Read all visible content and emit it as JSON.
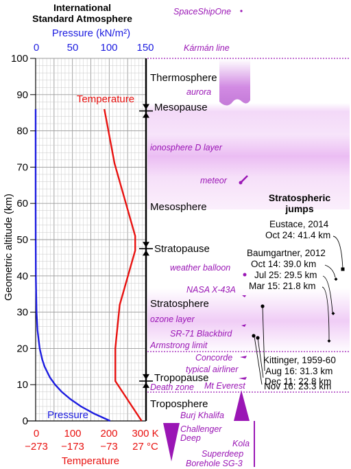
{
  "title_lines": [
    "International",
    "Standard Atmosphere"
  ],
  "pressure_axis": {
    "label": "Pressure (kN/m²)",
    "ticks": [
      "0",
      "50",
      "100",
      "150"
    ],
    "color": "#1c1ce0"
  },
  "altitude_axis": {
    "label": "Geometric altitude (km)",
    "ticks": [
      "0",
      "10",
      "20",
      "30",
      "40",
      "50",
      "60",
      "70",
      "80",
      "90",
      "100"
    ]
  },
  "temperature_axis": {
    "label": "Temperature",
    "kelvin_ticks": [
      "0",
      "100",
      "200",
      "300 K"
    ],
    "celsius_ticks": [
      "−273",
      "−173",
      "−73",
      "27 °C"
    ],
    "color": "#e8110f"
  },
  "curve_labels": {
    "temperature": "Temperature",
    "pressure": "Pressure"
  },
  "chart_data": {
    "type": "line",
    "series": [
      {
        "name": "Temperature",
        "x_unit": "K",
        "x": [
          288,
          216.5,
          216.5,
          228.5,
          270.5,
          270.5,
          214.5,
          186.8
        ],
        "y": [
          0,
          11,
          20,
          32,
          47,
          51,
          71,
          86
        ]
      },
      {
        "name": "Pressure",
        "x_unit": "kN/m²",
        "x": [
          101.3,
          79.5,
          61.6,
          47.2,
          35.6,
          26.5,
          19.4,
          12.1,
          8.85,
          5.53,
          2.55,
          1.2,
          0.29,
          0.08,
          0.02,
          0
        ],
        "y": [
          0,
          2,
          4,
          6,
          8,
          10,
          12,
          15,
          17,
          20,
          25,
          30,
          40,
          50,
          60,
          86
        ]
      }
    ],
    "xlim_pressure": [
      0,
      150
    ],
    "xlim_temperature": [
      0,
      300
    ],
    "ylim": [
      0,
      100
    ]
  },
  "layers": [
    {
      "name": "Thermosphere",
      "alt_km": 94
    },
    {
      "name": "Mesosphere",
      "alt_km": 61
    },
    {
      "name": "Stratosphere",
      "alt_km": 31.5
    },
    {
      "name": "Troposphere",
      "alt_km": 3
    }
  ],
  "pauses": [
    {
      "name": "Mesopause",
      "alt_km": 85.5
    },
    {
      "name": "Stratopause",
      "alt_km": 47.5
    },
    {
      "name": "Tropopause",
      "alt_km": 11
    }
  ],
  "annotations": [
    {
      "label": "SpaceShipOne",
      "alt_km": 112
    },
    {
      "label": "Kármán line",
      "alt_km": 100
    },
    {
      "label": "aurora",
      "alt_km": 90
    },
    {
      "label": "ionosphere D layer",
      "alt_km": 74
    },
    {
      "label": "meteor",
      "alt_km": 66
    },
    {
      "label": "weather balloon",
      "alt_km": 41
    },
    {
      "label": "NASA X-43A",
      "alt_km": 34
    },
    {
      "label": "ozone layer",
      "alt_km": 27
    },
    {
      "label": "SR-71 Blackbird",
      "alt_km": 23
    },
    {
      "label": "Armstrong limit",
      "alt_km": 19
    },
    {
      "label": "Concorde",
      "alt_km": 16.5
    },
    {
      "label": "typical airliner",
      "alt_km": 13
    },
    {
      "label": "Mt Everest",
      "alt_km": 9
    },
    {
      "label": "Death zone",
      "alt_km": 8.5
    },
    {
      "label": "Burj Khalifa",
      "alt_km": 0.8
    }
  ],
  "below_ground": [
    "Challenger",
    "Deep",
    "Kola",
    "Superdeep",
    "Borehole SG-3"
  ],
  "jumps": {
    "title_lines": [
      "Stratospheric",
      "jumps"
    ],
    "eustace": {
      "name": "Eustace, 2014",
      "entries": [
        "Oct 24: 41.4 km"
      ]
    },
    "baumgartner": {
      "name": "Baumgartner, 2012",
      "entries": [
        "Oct 14: 39.0 km",
        "Jul 25: 29.5 km",
        "Mar 15: 21.8 km"
      ]
    },
    "kittinger": {
      "name": "Kittinger, 1959-60",
      "entries": [
        "Aug 16: 31.3 km",
        "Dec 11: 22.8 km",
        "Nov 16: 23.3 km"
      ]
    }
  },
  "colors": {
    "pressure": "#1c1ce0",
    "temperature": "#e8110f",
    "annotation": "#9a16b5",
    "grid_fine": "#c8c8c8",
    "grid_major": "#9a9a9a",
    "band": "#eec6f5"
  }
}
